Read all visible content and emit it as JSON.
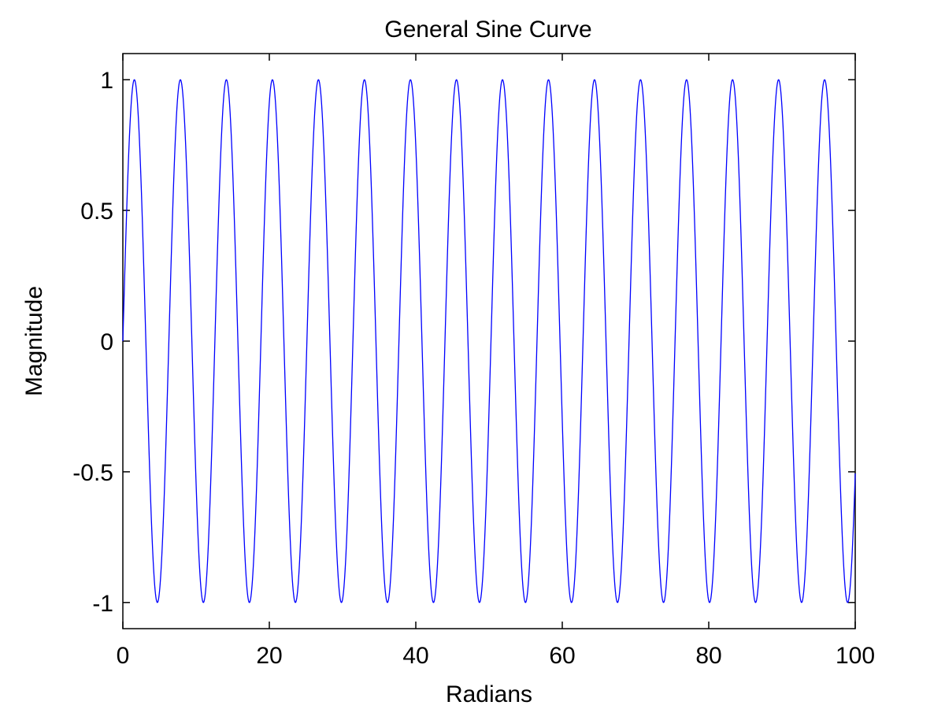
{
  "chart_data": {
    "type": "line",
    "title": "General Sine Curve",
    "xlabel": "Radians",
    "ylabel": "Magnitude",
    "xlim": [
      0,
      100
    ],
    "ylim": [
      -1.1,
      1.1
    ],
    "x_ticks": [
      0,
      20,
      40,
      60,
      80,
      100
    ],
    "y_ticks": [
      -1,
      -0.5,
      0,
      0.5,
      1
    ],
    "x_tick_labels": [
      "0",
      "20",
      "40",
      "60",
      "80",
      "100"
    ],
    "y_tick_labels": [
      "-1",
      "-0.5",
      "0",
      "0.5",
      "1"
    ],
    "grid": false,
    "legend": "none",
    "series": [
      {
        "function": "sin(x)",
        "x_range": [
          0,
          100
        ],
        "samples": 2000,
        "color": "#0000ff"
      }
    ]
  }
}
